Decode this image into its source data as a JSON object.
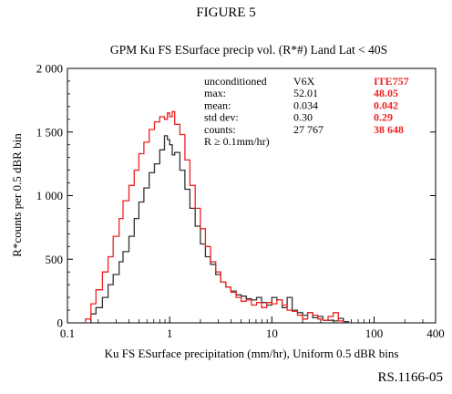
{
  "figure_label": "FIGURE 5",
  "reference": "RS.1166-05",
  "chart_data": {
    "type": "line",
    "title": "GPM Ku FS ESurface precip vol. (R*#) Land Lat < 40S",
    "xlabel": "Ku FS ESurface precipitation (mm/hr), Uniform 0.5 dBR bins",
    "ylabel": "R*counts per 0.5 dBR bin",
    "x_scale": "log",
    "xlim": [
      0.1,
      400
    ],
    "ylim": [
      0,
      2000
    ],
    "x_ticks": [
      0.1,
      1,
      10,
      100,
      400
    ],
    "x_tick_labels": [
      "0.1",
      "1",
      "10",
      "100",
      "400"
    ],
    "y_ticks": [
      0,
      500,
      1000,
      1500,
      2000
    ],
    "y_tick_labels": [
      "0",
      "500",
      "1 000",
      "1 500",
      "2 000"
    ],
    "colors": {
      "V6X": "#333333",
      "ITE757": "#ee2222"
    },
    "stats_table": {
      "header": [
        "unconditioned",
        "V6X",
        "ITE757"
      ],
      "rows": [
        [
          "max:",
          "52.01",
          "48.05"
        ],
        [
          "mean:",
          "0.034",
          "0.042"
        ],
        [
          "std dev:",
          "0.30",
          "0.29"
        ],
        [
          "counts:",
          "27 767",
          "38 648"
        ]
      ],
      "note": "R ≥ 0.1mm/hr)"
    },
    "series": [
      {
        "name": "V6X",
        "color": "#333333",
        "x": [
          0.15,
          0.17,
          0.19,
          0.22,
          0.25,
          0.28,
          0.32,
          0.35,
          0.4,
          0.45,
          0.5,
          0.56,
          0.63,
          0.71,
          0.8,
          0.89,
          0.95,
          1.0,
          1.06,
          1.12,
          1.26,
          1.41,
          1.58,
          1.78,
          2.0,
          2.24,
          2.51,
          2.82,
          3.16,
          3.55,
          3.98,
          4.47,
          5.01,
          5.62,
          6.31,
          7.08,
          7.94,
          8.91,
          10.0,
          11.2,
          12.6,
          14.1,
          15.8,
          17.8,
          20.0,
          22.4,
          25.1,
          28.2,
          31.6,
          35.5,
          39.8,
          44.7,
          50.1,
          56.2
        ],
        "y": [
          0,
          70,
          120,
          200,
          300,
          380,
          480,
          560,
          680,
          820,
          950,
          1060,
          1180,
          1250,
          1360,
          1470,
          1440,
          1400,
          1320,
          1340,
          1200,
          1050,
          900,
          760,
          620,
          520,
          460,
          380,
          320,
          280,
          250,
          220,
          210,
          190,
          180,
          200,
          160,
          140,
          200,
          180,
          120,
          200,
          100,
          80,
          60,
          80,
          40,
          50,
          20,
          20,
          15,
          35,
          10,
          0
        ]
      },
      {
        "name": "ITE757",
        "color": "#ee2222",
        "x": [
          0.15,
          0.17,
          0.19,
          0.22,
          0.25,
          0.28,
          0.32,
          0.35,
          0.4,
          0.45,
          0.5,
          0.56,
          0.63,
          0.71,
          0.8,
          0.89,
          0.95,
          1.0,
          1.06,
          1.12,
          1.26,
          1.41,
          1.58,
          1.78,
          2.0,
          2.24,
          2.51,
          2.82,
          3.16,
          3.55,
          3.98,
          4.47,
          5.01,
          5.62,
          6.31,
          7.08,
          7.94,
          8.91,
          10.0,
          11.2,
          12.6,
          14.1,
          15.8,
          17.8,
          20.0,
          22.4,
          25.1,
          28.2,
          31.6,
          35.5,
          39.8,
          44.7,
          50.1
        ],
        "y": [
          30,
          150,
          260,
          400,
          520,
          680,
          820,
          960,
          1080,
          1200,
          1330,
          1420,
          1520,
          1580,
          1620,
          1600,
          1650,
          1620,
          1660,
          1560,
          1480,
          1280,
          1080,
          900,
          740,
          600,
          480,
          400,
          320,
          280,
          240,
          200,
          170,
          180,
          140,
          160,
          120,
          160,
          150,
          180,
          140,
          100,
          90,
          60,
          30,
          80,
          60,
          30,
          20,
          50,
          80,
          15,
          0
        ]
      }
    ]
  }
}
